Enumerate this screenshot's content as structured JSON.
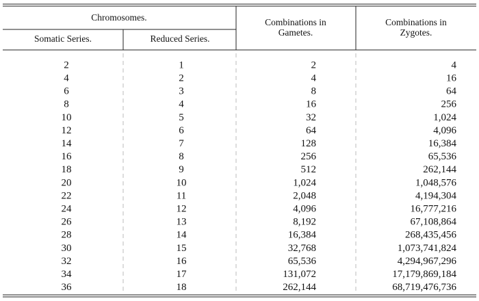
{
  "header": {
    "group": "Chromosomes.",
    "columns": [
      [
        "Somatic Series."
      ],
      [
        "Reduced Series."
      ],
      [
        "Combinations in",
        "Gametes."
      ],
      [
        "Combinations in",
        "Zygotes."
      ]
    ]
  },
  "table": {
    "rows": [
      [
        "2",
        "1",
        "2",
        "4"
      ],
      [
        "4",
        "2",
        "4",
        "16"
      ],
      [
        "6",
        "3",
        "8",
        "64"
      ],
      [
        "8",
        "4",
        "16",
        "256"
      ],
      [
        "10",
        "5",
        "32",
        "1,024"
      ],
      [
        "12",
        "6",
        "64",
        "4,096"
      ],
      [
        "14",
        "7",
        "128",
        "16,384"
      ],
      [
        "16",
        "8",
        "256",
        "65,536"
      ],
      [
        "18",
        "9",
        "512",
        "262,144"
      ],
      [
        "20",
        "10",
        "1,024",
        "1,048,576"
      ],
      [
        "22",
        "11",
        "2,048",
        "4,194,304"
      ],
      [
        "24",
        "12",
        "4,096",
        "16,777,216"
      ],
      [
        "26",
        "13",
        "8,192",
        "67,108,864"
      ],
      [
        "28",
        "14",
        "16,384",
        "268,435,456"
      ],
      [
        "30",
        "15",
        "32,768",
        "1,073,741,824"
      ],
      [
        "32",
        "16",
        "65,536",
        "4,294,967,296"
      ],
      [
        "34",
        "17",
        "131,072",
        "17,179,869,184"
      ],
      [
        "36",
        "18",
        "262,144",
        "68,719,476,736"
      ]
    ]
  }
}
